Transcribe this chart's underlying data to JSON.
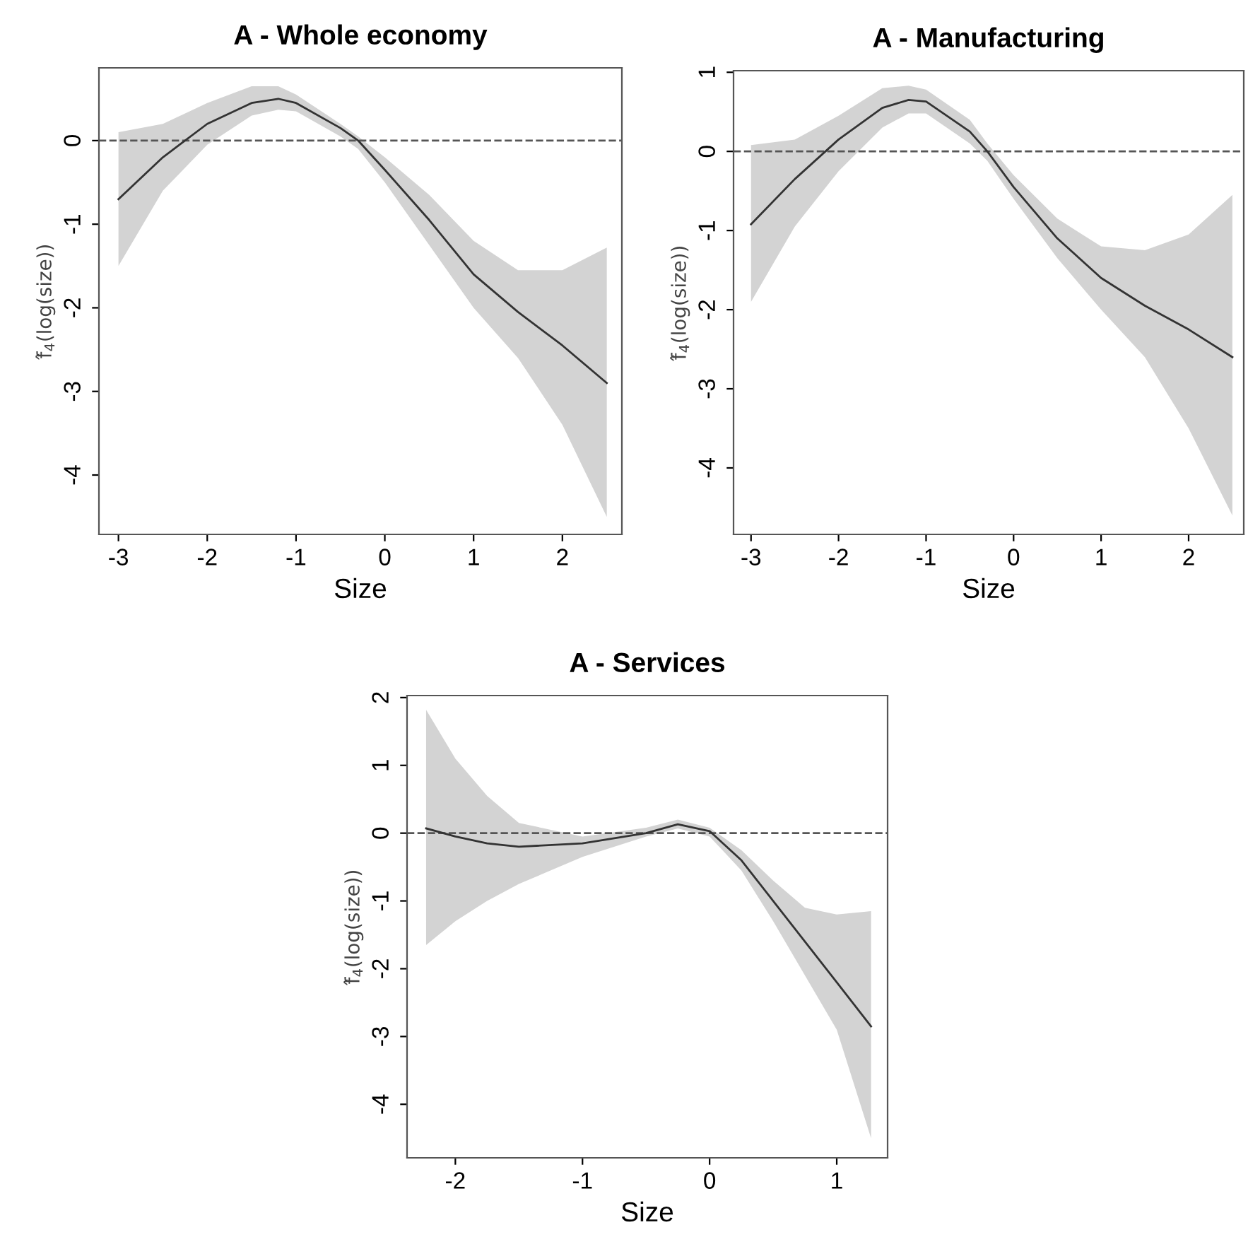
{
  "chart_data": [
    {
      "type": "line",
      "title": "A - Whole economy",
      "xlabel": "Size",
      "ylabel": "f̂$_{4}$(log(size))",
      "xlim": [
        -3.22,
        2.67
      ],
      "ylim": [
        -4.71,
        0.87
      ],
      "xticks": [
        -3,
        -2,
        -1,
        0,
        1,
        2
      ],
      "yticks": [
        -4,
        -3,
        -2,
        -1,
        0
      ],
      "grid": false,
      "legend": false,
      "marker": "none",
      "line_style": "solid",
      "ref_lines": [
        {
          "axis": "y",
          "value": 0,
          "color": "#555555",
          "line_style": "dashed"
        }
      ],
      "series": [
        {
          "color": "#333333",
          "x": [
            -3,
            -2.5,
            -2,
            -1.5,
            -1.2,
            -1,
            -0.5,
            -0.3,
            0,
            0.5,
            1,
            1.5,
            2,
            2.5
          ],
          "values": [
            -0.7,
            -0.2,
            0.2,
            0.45,
            0.5,
            0.45,
            0.15,
            0.0,
            -0.35,
            -0.95,
            -1.6,
            -2.05,
            -2.45,
            -2.9
          ],
          "upper": [
            0.1,
            0.2,
            0.45,
            0.65,
            0.65,
            0.55,
            0.2,
            0.05,
            -0.2,
            -0.65,
            -1.2,
            -1.55,
            -1.55,
            -1.28
          ],
          "lower": [
            -1.5,
            -0.6,
            -0.05,
            0.3,
            0.37,
            0.35,
            0.05,
            -0.1,
            -0.5,
            -1.25,
            -2.0,
            -2.6,
            -3.4,
            -4.5
          ]
        }
      ]
    },
    {
      "type": "line",
      "title": "A - Manufacturing",
      "xlabel": "Size",
      "ylabel": "f̂$_{4}$(log(size))",
      "xlim": [
        -3.2,
        2.63
      ],
      "ylim": [
        -4.84,
        1.02
      ],
      "xticks": [
        -3,
        -2,
        -1,
        0,
        1,
        2
      ],
      "yticks": [
        -4,
        -3,
        -2,
        -1,
        0,
        1
      ],
      "grid": false,
      "legend": false,
      "marker": "none",
      "line_style": "solid",
      "ref_lines": [
        {
          "axis": "y",
          "value": 0,
          "color": "#555555",
          "line_style": "dashed"
        }
      ],
      "series": [
        {
          "color": "#333333",
          "x": [
            -3,
            -2.5,
            -2,
            -1.5,
            -1.2,
            -1,
            -0.5,
            -0.3,
            0,
            0.5,
            1,
            1.5,
            2,
            2.5
          ],
          "values": [
            -0.92,
            -0.35,
            0.15,
            0.55,
            0.65,
            0.63,
            0.25,
            0.0,
            -0.45,
            -1.1,
            -1.6,
            -1.95,
            -2.25,
            -2.6
          ],
          "upper": [
            0.08,
            0.15,
            0.45,
            0.8,
            0.83,
            0.78,
            0.4,
            0.1,
            -0.3,
            -0.85,
            -1.2,
            -1.25,
            -1.05,
            -0.55
          ],
          "lower": [
            -1.9,
            -0.95,
            -0.25,
            0.3,
            0.48,
            0.48,
            0.1,
            -0.12,
            -0.6,
            -1.35,
            -2.0,
            -2.6,
            -3.5,
            -4.6
          ]
        }
      ]
    },
    {
      "type": "line",
      "title": "A - Services",
      "xlabel": "Size",
      "ylabel": "f̂$_{4}$(log(size))",
      "xlim": [
        -2.38,
        1.4
      ],
      "ylim": [
        -4.79,
        2.03
      ],
      "xticks": [
        -2,
        -1,
        0,
        1
      ],
      "yticks": [
        -4,
        -3,
        -2,
        -1,
        0,
        1,
        2
      ],
      "grid": false,
      "legend": false,
      "marker": "none",
      "line_style": "solid",
      "ref_lines": [
        {
          "axis": "y",
          "value": 0,
          "color": "#555555",
          "line_style": "dashed"
        }
      ],
      "series": [
        {
          "color": "#333333",
          "x": [
            -2.23,
            -2,
            -1.75,
            -1.5,
            -1,
            -0.5,
            -0.25,
            0,
            0.25,
            0.5,
            0.75,
            1,
            1.27
          ],
          "values": [
            0.07,
            -0.05,
            -0.15,
            -0.2,
            -0.15,
            0.0,
            0.13,
            0.03,
            -0.4,
            -1.0,
            -1.6,
            -2.2,
            -2.85
          ],
          "upper": [
            1.82,
            1.1,
            0.55,
            0.15,
            -0.05,
            0.08,
            0.2,
            0.08,
            -0.25,
            -0.7,
            -1.1,
            -1.2,
            -1.15
          ],
          "lower": [
            -1.65,
            -1.3,
            -1.0,
            -0.75,
            -0.35,
            -0.05,
            0.07,
            -0.05,
            -0.55,
            -1.3,
            -2.1,
            -2.9,
            -4.5
          ]
        }
      ]
    }
  ]
}
